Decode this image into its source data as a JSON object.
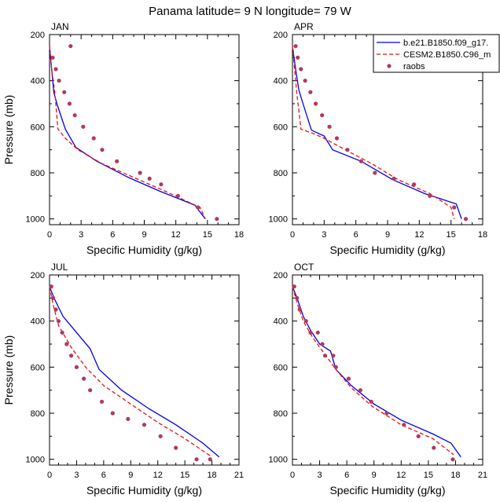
{
  "figure_title": "Panama  latitude= 9 N longitude= 79 W",
  "colors": {
    "model_a": "#0000ee",
    "model_b": "#ee1111",
    "obs": "#b03a5e",
    "axis": "#000000"
  },
  "legend": [
    {
      "label": "b.e21.B1850.f09_g17.",
      "style": "solid",
      "key": "model_a"
    },
    {
      "label": "CESM2.B1850.C96_m",
      "style": "dashed",
      "key": "model_b"
    },
    {
      "label": "raobs",
      "style": "marker",
      "key": "obs"
    }
  ],
  "chart_data": [
    {
      "type": "line",
      "title": "JAN",
      "xlabel": "Specific Humidity (g/kg)",
      "ylabel": "Pressure (mb)",
      "xlim": [
        0,
        18
      ],
      "xticks": [
        "0",
        "3",
        "6",
        "9",
        "12",
        "15",
        "18"
      ],
      "ylim": [
        1025,
        200
      ],
      "yticks": [
        "200",
        "400",
        "600",
        "800",
        "1000"
      ],
      "series": [
        {
          "name": "b.e21.B1850.f09_g17.",
          "key": "model_a",
          "style": "solid",
          "x": [
            0.0,
            0.2,
            0.4,
            0.7,
            1.5,
            2.5,
            4.5,
            7.5,
            10.5,
            13.8,
            14.8
          ],
          "y": [
            250,
            350,
            450,
            500,
            610,
            690,
            750,
            820,
            880,
            940,
            1000
          ]
        },
        {
          "name": "CESM2.B1850.C96_m",
          "key": "model_b",
          "style": "dashed",
          "x": [
            0.0,
            0.2,
            0.5,
            0.8,
            1.5,
            2.7,
            5.0,
            8.0,
            11.0,
            14.3,
            14.8
          ],
          "y": [
            250,
            350,
            450,
            610,
            650,
            700,
            760,
            820,
            880,
            950,
            1000
          ]
        },
        {
          "name": "raobs",
          "key": "obs",
          "style": "marker",
          "x": [
            2.0,
            0.3,
            0.6,
            0.9,
            1.4,
            1.9,
            2.4,
            3.2,
            4.2,
            5.0,
            6.4,
            8.6,
            9.5,
            10.6,
            12.2,
            14.1,
            15.9
          ],
          "y": [
            250,
            300,
            350,
            400,
            450,
            500,
            550,
            600,
            650,
            700,
            750,
            800,
            825,
            850,
            900,
            950,
            1000
          ]
        }
      ]
    },
    {
      "type": "line",
      "title": "APR",
      "xlabel": "Specific Humidity (g/kg)",
      "ylabel": "",
      "xlim": [
        0,
        18
      ],
      "xticks": [
        "0",
        "3",
        "6",
        "9",
        "12",
        "15",
        "18"
      ],
      "ylim": [
        1025,
        200
      ],
      "yticks": [
        "200",
        "400",
        "600",
        "800",
        "1000"
      ],
      "series": [
        {
          "name": "b.e21.B1850.f09_g17.",
          "key": "model_a",
          "style": "solid",
          "x": [
            0.0,
            0.3,
            0.6,
            1.0,
            1.8,
            3.0,
            3.8,
            6.5,
            9.5,
            12.5,
            15.5,
            16.0
          ],
          "y": [
            250,
            350,
            440,
            500,
            615,
            640,
            700,
            750,
            830,
            890,
            935,
            1000
          ]
        },
        {
          "name": "CESM2.B1850.C96_m",
          "key": "model_b",
          "style": "dashed",
          "x": [
            0.0,
            0.2,
            0.4,
            0.8,
            2.0,
            3.0,
            5.0,
            7.5,
            10.0,
            13.0,
            15.0,
            15.3
          ],
          "y": [
            250,
            350,
            450,
            610,
            630,
            650,
            700,
            760,
            830,
            890,
            950,
            1000
          ]
        },
        {
          "name": "raobs",
          "key": "obs",
          "style": "marker",
          "x": [
            0.3,
            0.5,
            0.8,
            1.2,
            1.7,
            2.2,
            2.8,
            3.5,
            4.2,
            5.2,
            6.5,
            7.8,
            9.6,
            11.5,
            13.0,
            15.3,
            16.4
          ],
          "y": [
            250,
            300,
            350,
            400,
            450,
            500,
            550,
            600,
            650,
            700,
            750,
            800,
            825,
            850,
            900,
            950,
            1000
          ]
        }
      ]
    },
    {
      "type": "line",
      "title": "JUL",
      "xlabel": "Specific Humidity (g/kg)",
      "ylabel": "Pressure (mb)",
      "xlim": [
        0,
        21
      ],
      "xticks": [
        "0",
        "3",
        "6",
        "9",
        "12",
        "15",
        "18",
        "21"
      ],
      "ylim": [
        1025,
        200
      ],
      "yticks": [
        "200",
        "400",
        "600",
        "800",
        "1000"
      ],
      "series": [
        {
          "name": "b.e21.B1850.f09_g17.",
          "key": "model_a",
          "style": "solid",
          "x": [
            0.0,
            0.5,
            1.5,
            3.0,
            4.5,
            5.5,
            8.0,
            11.0,
            14.0,
            17.0,
            18.8
          ],
          "y": [
            250,
            300,
            380,
            450,
            520,
            610,
            700,
            780,
            850,
            930,
            990
          ]
        },
        {
          "name": "CESM2.B1850.C96_m",
          "key": "model_b",
          "style": "dashed",
          "x": [
            0.0,
            0.4,
            1.0,
            2.5,
            4.0,
            6.0,
            9.0,
            12.0,
            15.0,
            18.0
          ],
          "y": [
            250,
            330,
            420,
            520,
            600,
            680,
            760,
            840,
            910,
            990
          ]
        },
        {
          "name": "raobs",
          "key": "obs",
          "style": "marker",
          "x": [
            0.2,
            0.4,
            0.7,
            1.0,
            1.4,
            1.9,
            2.4,
            3.0,
            3.8,
            4.5,
            5.8,
            7.0,
            8.7,
            10.5,
            12.3,
            14.0,
            16.3,
            17.8
          ],
          "y": [
            250,
            300,
            350,
            400,
            450,
            500,
            550,
            600,
            650,
            700,
            750,
            800,
            825,
            850,
            900,
            950,
            1000,
            1000
          ]
        }
      ]
    },
    {
      "type": "line",
      "title": "OCT",
      "xlabel": "Specific Humidity (g/kg)",
      "ylabel": "",
      "xlim": [
        0,
        21
      ],
      "xticks": [
        "0",
        "3",
        "6",
        "9",
        "12",
        "15",
        "18",
        "21"
      ],
      "ylim": [
        1025,
        200
      ],
      "yticks": [
        "200",
        "400",
        "600",
        "800",
        "1000"
      ],
      "series": [
        {
          "name": "b.e21.B1850.f09_g17.",
          "key": "model_a",
          "style": "solid",
          "x": [
            0.0,
            0.5,
            1.2,
            2.0,
            3.0,
            4.2,
            4.8,
            6.5,
            9.0,
            12.0,
            15.5,
            17.5,
            18.6
          ],
          "y": [
            250,
            300,
            380,
            440,
            500,
            530,
            610,
            680,
            760,
            830,
            890,
            930,
            990
          ]
        },
        {
          "name": "CESM2.B1850.C96_m",
          "key": "model_b",
          "style": "dashed",
          "x": [
            0.0,
            0.5,
            1.2,
            2.2,
            3.5,
            4.8,
            6.5,
            8.8,
            12.0,
            15.5,
            17.8
          ],
          "y": [
            250,
            320,
            400,
            470,
            540,
            610,
            690,
            770,
            850,
            910,
            980
          ]
        },
        {
          "name": "raobs",
          "key": "obs",
          "style": "marker",
          "x": [
            0.2,
            0.5,
            0.8,
            1.5,
            2.0,
            2.8,
            3.3,
            3.6,
            4.5,
            4.8,
            6.2,
            7.5,
            8.7,
            10.4,
            12.3,
            13.9,
            15.6,
            17.7
          ],
          "y": [
            250,
            300,
            350,
            400,
            450,
            450,
            500,
            550,
            550,
            600,
            650,
            700,
            750,
            800,
            850,
            900,
            950,
            1000
          ]
        }
      ]
    }
  ]
}
